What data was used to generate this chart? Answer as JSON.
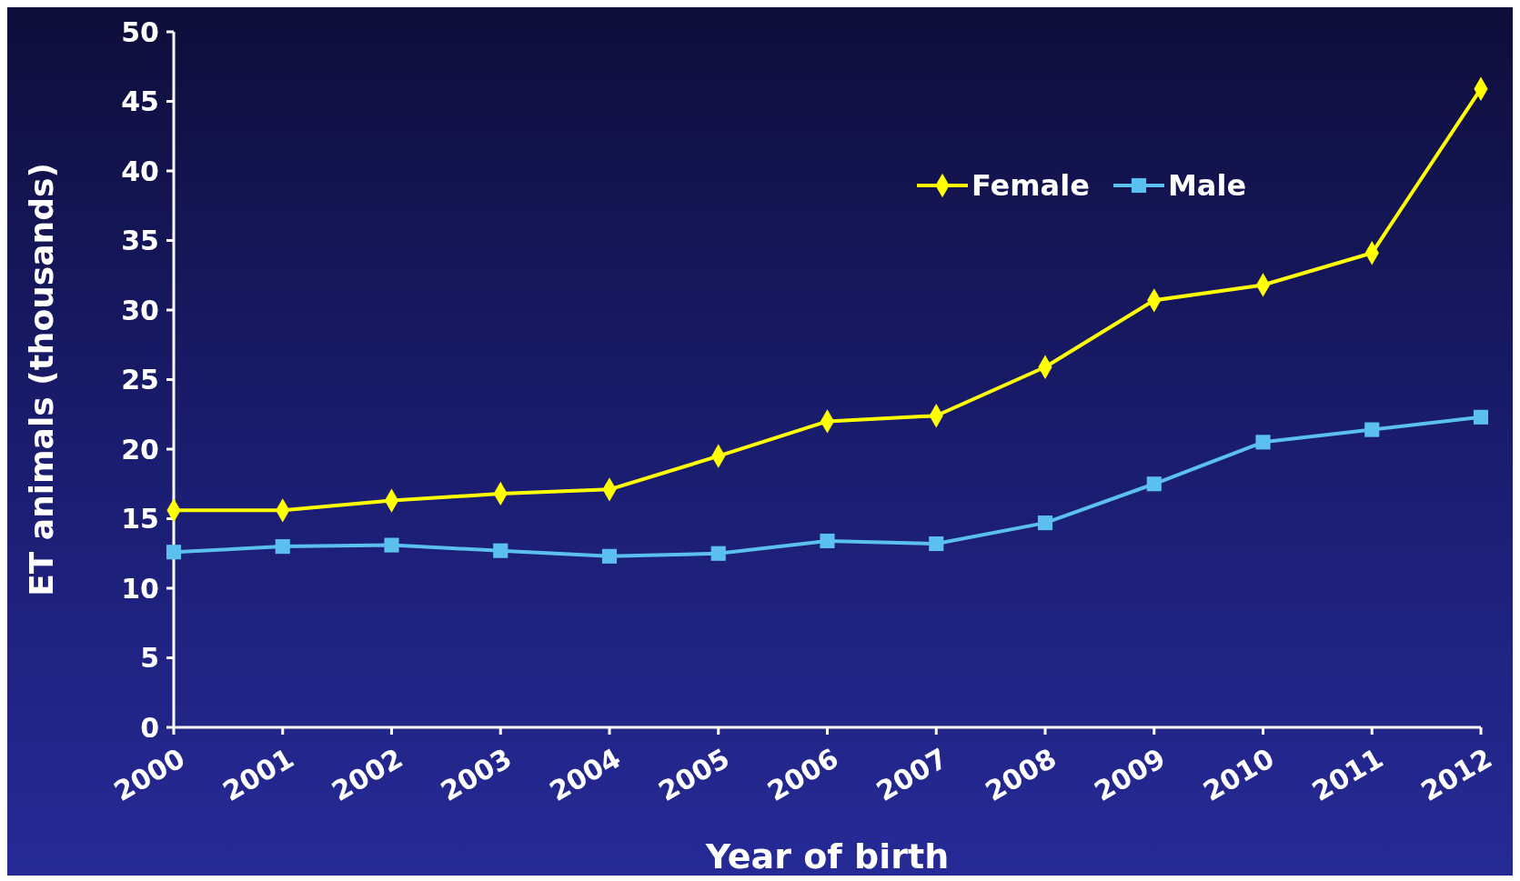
{
  "chart_data": {
    "type": "line",
    "xlabel": "Year of birth",
    "ylabel": "ET animals (thousands)",
    "categories": [
      "2000",
      "2001",
      "2002",
      "2003",
      "2004",
      "2005",
      "2006",
      "2007",
      "2008",
      "2009",
      "2010",
      "2011",
      "2012"
    ],
    "series": [
      {
        "name": "Female",
        "color": "#ffff00",
        "marker": "diamond",
        "values": [
          15.6,
          15.6,
          16.3,
          16.8,
          17.1,
          19.5,
          22.0,
          22.4,
          25.9,
          30.7,
          31.8,
          34.1,
          45.9
        ]
      },
      {
        "name": "Male",
        "color": "#5bc0f0",
        "marker": "square",
        "values": [
          12.6,
          13.0,
          13.1,
          12.7,
          12.3,
          12.5,
          13.4,
          13.2,
          14.7,
          17.5,
          20.5,
          21.4,
          22.3
        ]
      }
    ],
    "ylim": [
      0,
      50
    ],
    "yticks": [
      0,
      5,
      10,
      15,
      20,
      25,
      30,
      35,
      40,
      45,
      50
    ],
    "grid": false,
    "legend": "top right"
  }
}
